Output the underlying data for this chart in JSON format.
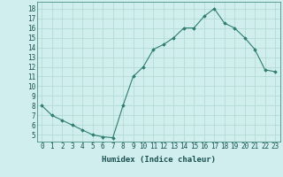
{
  "x": [
    0,
    1,
    2,
    3,
    4,
    5,
    6,
    7,
    8,
    9,
    10,
    11,
    12,
    13,
    14,
    15,
    16,
    17,
    18,
    19,
    20,
    21,
    22,
    23
  ],
  "y": [
    8,
    7,
    6.5,
    6,
    5.5,
    5,
    4.8,
    4.7,
    8,
    11,
    12,
    13.8,
    14.3,
    15,
    16,
    16,
    17.2,
    18,
    16.5,
    16,
    15,
    13.8,
    11.7,
    11.5
  ],
  "line_color": "#2e7d6e",
  "marker_color": "#2e7d6e",
  "bg_color": "#d0eeee",
  "grid_color": "#b0d8d0",
  "xlabel": "Humidex (Indice chaleur)",
  "xlim": [
    -0.5,
    23.5
  ],
  "ylim": [
    4.3,
    18.7
  ],
  "yticks": [
    5,
    6,
    7,
    8,
    9,
    10,
    11,
    12,
    13,
    14,
    15,
    16,
    17,
    18
  ],
  "xticks": [
    0,
    1,
    2,
    3,
    4,
    5,
    6,
    7,
    8,
    9,
    10,
    11,
    12,
    13,
    14,
    15,
    16,
    17,
    18,
    19,
    20,
    21,
    22,
    23
  ],
  "label_fontsize": 6.5,
  "tick_fontsize": 5.5
}
